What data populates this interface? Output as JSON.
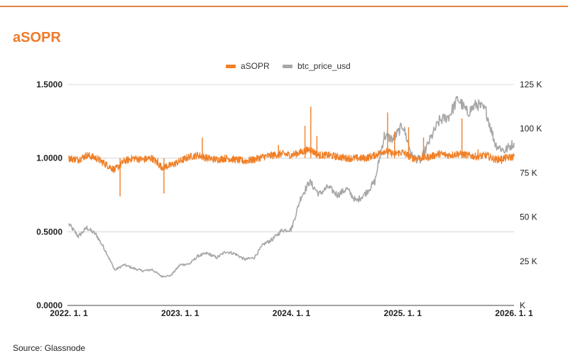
{
  "title": "aSOPR",
  "source": "Source: Glassnode",
  "colors": {
    "asopr": "#f07f26",
    "btc": "#a7a7a7",
    "accent": "#e9823f"
  },
  "chart_data": {
    "type": "line",
    "title": "aSOPR",
    "legend_position": "top-center",
    "grid": true,
    "x_ticks": [
      "2022. 1. 1",
      "2023. 1. 1",
      "2024. 1. 1",
      "2025. 1. 1",
      "2026. 1. 1"
    ],
    "x_range": [
      "2022-01-01",
      "2026-01-01"
    ],
    "y_left": {
      "range": [
        0,
        1.5
      ],
      "ticks": [
        "0.0000",
        "0.5000",
        "1.0000",
        "1.5000"
      ]
    },
    "y_right": {
      "range": [
        0,
        125000
      ],
      "ticks": [
        "K",
        "25 K",
        "50 K",
        "75 K",
        "100 K",
        "125 K"
      ]
    },
    "series": [
      {
        "name": "aSOPR",
        "axis": "left",
        "sample": "monthly",
        "points": [
          [
            "2022-01-01",
            1.0
          ],
          [
            "2022-02-01",
            0.99
          ],
          [
            "2022-03-01",
            1.02
          ],
          [
            "2022-04-01",
            1.0
          ],
          [
            "2022-05-01",
            0.96
          ],
          [
            "2022-06-01",
            0.92
          ],
          [
            "2022-07-01",
            0.98
          ],
          [
            "2022-08-01",
            1.0
          ],
          [
            "2022-09-01",
            0.99
          ],
          [
            "2022-10-01",
            1.0
          ],
          [
            "2022-11-01",
            0.94
          ],
          [
            "2022-12-01",
            0.95
          ],
          [
            "2023-01-01",
            0.98
          ],
          [
            "2023-02-01",
            1.01
          ],
          [
            "2023-03-01",
            1.02
          ],
          [
            "2023-04-01",
            1.0
          ],
          [
            "2023-05-01",
            0.99
          ],
          [
            "2023-06-01",
            1.0
          ],
          [
            "2023-07-01",
            0.99
          ],
          [
            "2023-08-01",
            0.98
          ],
          [
            "2023-09-01",
            0.99
          ],
          [
            "2023-10-01",
            1.01
          ],
          [
            "2023-11-01",
            1.02
          ],
          [
            "2023-12-01",
            1.03
          ],
          [
            "2024-01-01",
            1.02
          ],
          [
            "2024-02-01",
            1.04
          ],
          [
            "2024-03-01",
            1.06
          ],
          [
            "2024-04-01",
            1.02
          ],
          [
            "2024-05-01",
            1.02
          ],
          [
            "2024-06-01",
            1.01
          ],
          [
            "2024-07-01",
            1.0
          ],
          [
            "2024-08-01",
            1.0
          ],
          [
            "2024-09-01",
            1.0
          ],
          [
            "2024-10-01",
            1.02
          ],
          [
            "2024-11-01",
            1.05
          ],
          [
            "2024-12-01",
            1.03
          ],
          [
            "2025-01-01",
            1.04
          ],
          [
            "2025-02-01",
            1.0
          ],
          [
            "2025-03-01",
            1.0
          ],
          [
            "2025-04-01",
            1.01
          ],
          [
            "2025-05-01",
            1.03
          ],
          [
            "2025-06-01",
            1.02
          ],
          [
            "2025-07-01",
            1.03
          ],
          [
            "2025-08-01",
            1.02
          ],
          [
            "2025-09-01",
            1.01
          ],
          [
            "2025-10-01",
            1.02
          ],
          [
            "2025-11-01",
            0.99
          ],
          [
            "2025-12-01",
            1.0
          ],
          [
            "2026-01-01",
            1.01
          ]
        ],
        "spikes": [
          [
            "2022-06-18",
            0.74
          ],
          [
            "2022-11-09",
            0.76
          ],
          [
            "2022-10-20",
            0.95
          ],
          [
            "2023-03-15",
            1.14
          ],
          [
            "2023-11-20",
            1.09
          ],
          [
            "2024-03-05",
            1.35
          ],
          [
            "2024-02-15",
            1.22
          ],
          [
            "2024-03-25",
            1.15
          ],
          [
            "2024-11-12",
            1.31
          ],
          [
            "2024-12-05",
            1.18
          ],
          [
            "2025-01-20",
            1.21
          ],
          [
            "2025-03-10",
            1.14
          ],
          [
            "2025-07-14",
            1.27
          ],
          [
            "2025-11-21",
            0.96
          ],
          [
            "2025-09-05",
            1.06
          ]
        ]
      },
      {
        "name": "btc_price_usd",
        "axis": "right",
        "sample": "monthly",
        "points": [
          [
            "2022-01-01",
            46000
          ],
          [
            "2022-02-01",
            39000
          ],
          [
            "2022-03-01",
            44000
          ],
          [
            "2022-04-01",
            40000
          ],
          [
            "2022-05-01",
            31000
          ],
          [
            "2022-06-01",
            20000
          ],
          [
            "2022-07-01",
            23000
          ],
          [
            "2022-08-01",
            21000
          ],
          [
            "2022-09-01",
            19500
          ],
          [
            "2022-10-01",
            20300
          ],
          [
            "2022-11-01",
            16500
          ],
          [
            "2022-12-01",
            16800
          ],
          [
            "2023-01-01",
            23000
          ],
          [
            "2023-02-01",
            23500
          ],
          [
            "2023-03-01",
            28000
          ],
          [
            "2023-04-01",
            29500
          ],
          [
            "2023-05-01",
            27000
          ],
          [
            "2023-06-01",
            30500
          ],
          [
            "2023-07-01",
            29200
          ],
          [
            "2023-08-01",
            26000
          ],
          [
            "2023-09-01",
            27000
          ],
          [
            "2023-10-01",
            34500
          ],
          [
            "2023-11-01",
            37500
          ],
          [
            "2023-12-01",
            42500
          ],
          [
            "2024-01-01",
            43000
          ],
          [
            "2024-02-01",
            61000
          ],
          [
            "2024-03-01",
            70000
          ],
          [
            "2024-04-01",
            63000
          ],
          [
            "2024-05-01",
            67000
          ],
          [
            "2024-06-01",
            62500
          ],
          [
            "2024-07-01",
            66000
          ],
          [
            "2024-08-01",
            59000
          ],
          [
            "2024-09-01",
            63500
          ],
          [
            "2024-10-01",
            70000
          ],
          [
            "2024-11-01",
            96000
          ],
          [
            "2024-12-01",
            94000
          ],
          [
            "2025-01-01",
            102000
          ],
          [
            "2025-02-01",
            84000
          ],
          [
            "2025-03-01",
            82000
          ],
          [
            "2025-04-01",
            94000
          ],
          [
            "2025-05-01",
            104500
          ],
          [
            "2025-06-01",
            107000
          ],
          [
            "2025-07-01",
            117000
          ],
          [
            "2025-08-01",
            109000
          ],
          [
            "2025-09-01",
            114000
          ],
          [
            "2025-10-01",
            110000
          ],
          [
            "2025-11-01",
            91000
          ],
          [
            "2025-12-01",
            87500
          ],
          [
            "2026-01-01",
            92000
          ]
        ]
      }
    ]
  }
}
